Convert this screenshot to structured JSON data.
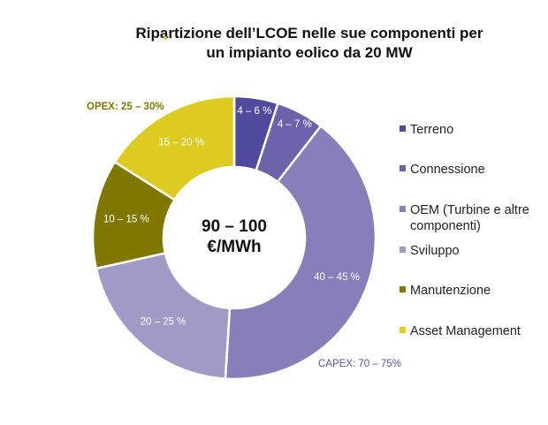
{
  "chart_data": {
    "type": "pie",
    "variant": "donut",
    "title_lines": [
      "Ripartizione dell’LCOE nelle sue componenti per",
      "un impianto eolico da 20 MW"
    ],
    "center_label": [
      "90 – 100",
      "€/MWh"
    ],
    "slices": [
      {
        "name": "Terreno",
        "value": 5,
        "label": "4 – 6 %",
        "color": "#4F4A9E"
      },
      {
        "name": "Connessione",
        "value": 5.5,
        "label": "4 – 7 %",
        "color": "#6C64AA"
      },
      {
        "name": "OEM (Turbine e altre componenti)",
        "legend_lines": [
          "OEM (Turbine e altre",
          "componenti)"
        ],
        "value": 40.5,
        "label": "40 – 45 %",
        "color": "#877FBA"
      },
      {
        "name": "Sviluppo",
        "value": 20.5,
        "label": "20 – 25 %",
        "color": "#A29AC6"
      },
      {
        "name": "Manutenzione",
        "value": 12.5,
        "label": "10 – 15 %",
        "color": "#7F7700"
      },
      {
        "name": "Asset Management",
        "value": 16,
        "label": "15 – 20 %",
        "color": "#DDCB22"
      }
    ],
    "groups": [
      {
        "label": "OPEX: 25 – 30%",
        "color": "#7F7700"
      },
      {
        "label": "CAPEX: 70 – 75%",
        "color": "#5B52A6"
      }
    ],
    "legend_position": "right"
  }
}
